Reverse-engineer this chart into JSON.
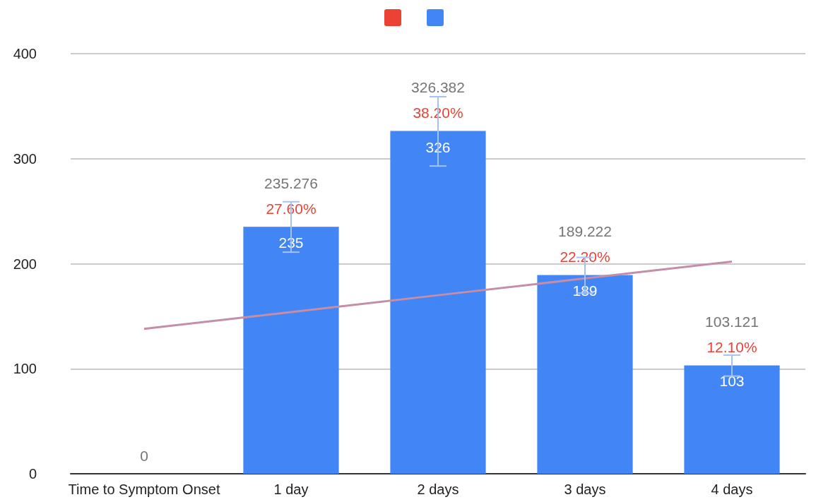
{
  "chart_data": {
    "type": "bar",
    "stacked": true,
    "categories": [
      "Time to Symptom Onset",
      "1 day",
      "2 days",
      "3 days",
      "4 days"
    ],
    "series": [
      {
        "color": "#4285f4",
        "values": [
          0,
          235,
          326,
          189,
          103
        ],
        "value_labels": [
          null,
          "235",
          "326",
          "189",
          "103"
        ],
        "errors": [
          null,
          24,
          33,
          17,
          10
        ]
      },
      {
        "color": "#ea4335",
        "values": [
          0,
          0.276,
          0.382,
          0.222,
          0.121
        ],
        "value_labels": [
          null,
          "27.60%",
          "38.20%",
          "22.20%",
          "12.10%"
        ]
      },
      {
        "type": "line",
        "color": "#c48ea8",
        "x": [
          "Time to Symptom Onset",
          "1 day",
          "2 days",
          "3 days",
          "4 days"
        ],
        "values": [
          138,
          154,
          170,
          186,
          202
        ]
      }
    ],
    "totals": [
      "0",
      "235.276",
      "326.382",
      "189.222",
      "103.121"
    ],
    "ylim": [
      0,
      400
    ],
    "yticks": [
      0,
      100,
      200,
      300,
      400
    ],
    "grid": "y",
    "marker": "none"
  }
}
